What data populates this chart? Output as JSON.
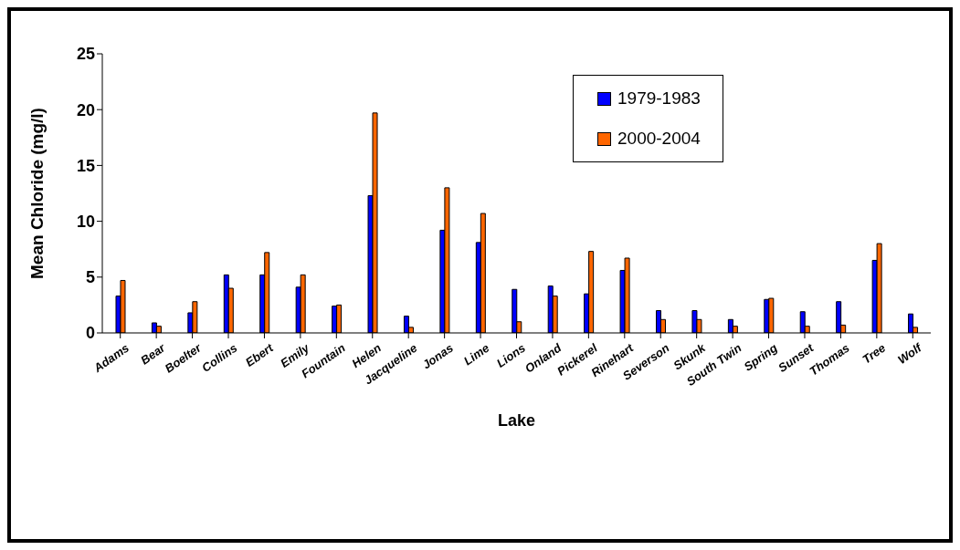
{
  "chart_data": {
    "type": "bar",
    "xlabel": "Lake",
    "ylabel": "Mean Chloride (mg/l)",
    "categories": [
      "Adams",
      "Bear",
      "Boelter",
      "Collins",
      "Ebert",
      "Emily",
      "Fountain",
      "Helen",
      "Jacqueline",
      "Jonas",
      "Lime",
      "Lions",
      "Onland",
      "Pickerel",
      "Rinehart",
      "Severson",
      "Skunk",
      "South Twin",
      "Spring",
      "Sunset",
      "Thomas",
      "Tree",
      "Wolf"
    ],
    "series": [
      {
        "name": "1979-1983",
        "color": "#0000ff",
        "values": [
          3.3,
          0.9,
          1.8,
          5.2,
          5.2,
          4.1,
          2.4,
          12.3,
          1.5,
          9.2,
          8.1,
          3.9,
          4.2,
          3.5,
          5.6,
          2.0,
          2.0,
          1.2,
          3.0,
          1.9,
          2.8,
          6.5,
          1.7
        ]
      },
      {
        "name": "2000-2004",
        "color": "#ff6600",
        "values": [
          4.7,
          0.6,
          2.8,
          4.0,
          7.2,
          5.2,
          2.5,
          19.7,
          0.5,
          13.0,
          10.7,
          1.0,
          3.3,
          7.3,
          6.7,
          1.2,
          1.2,
          0.6,
          3.1,
          0.6,
          0.7,
          8.0,
          0.5
        ]
      }
    ],
    "ylim": [
      0,
      25
    ],
    "yticks": [
      0,
      5,
      10,
      15,
      20,
      25
    ],
    "grid": false,
    "legend": "top right"
  }
}
